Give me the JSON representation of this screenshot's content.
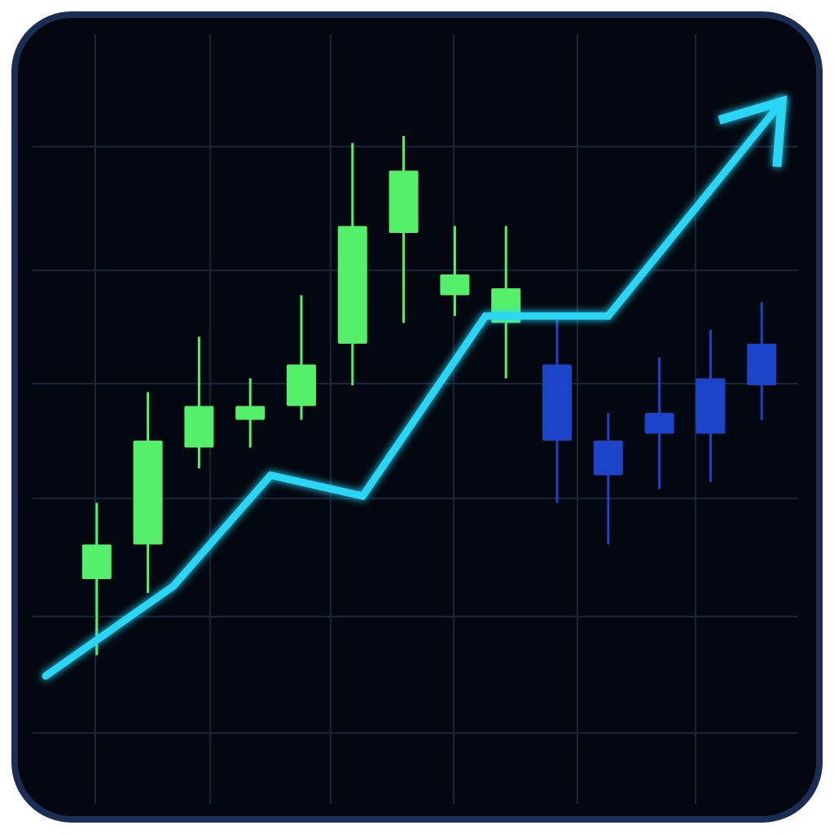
{
  "chart_data": {
    "type": "candlestick",
    "title": "",
    "xlabel": "",
    "ylabel": "",
    "ylim": [
      0,
      100
    ],
    "grid": true,
    "legend": "none",
    "x_range": [
      0,
      14
    ],
    "candles": [
      {
        "x": 1,
        "open": 26,
        "close": 31,
        "high": 37,
        "low": 15,
        "direction": "up"
      },
      {
        "x": 2,
        "open": 31,
        "close": 46,
        "high": 53,
        "low": 24,
        "direction": "up"
      },
      {
        "x": 3,
        "open": 45,
        "close": 51,
        "high": 61,
        "low": 42,
        "direction": "up"
      },
      {
        "x": 4,
        "open": 49,
        "close": 51,
        "high": 55,
        "low": 45,
        "direction": "up"
      },
      {
        "x": 5,
        "open": 51,
        "close": 57,
        "high": 67,
        "low": 49,
        "direction": "up"
      },
      {
        "x": 6,
        "open": 60,
        "close": 77,
        "high": 89,
        "low": 54,
        "direction": "up"
      },
      {
        "x": 7,
        "open": 76,
        "close": 85,
        "high": 90,
        "low": 63,
        "direction": "up"
      },
      {
        "x": 8,
        "open": 67,
        "close": 70,
        "high": 77,
        "low": 64,
        "direction": "up"
      },
      {
        "x": 9,
        "open": 63,
        "close": 68,
        "high": 77,
        "low": 55,
        "direction": "up"
      },
      {
        "x": 10,
        "open": 57,
        "close": 46,
        "high": 64,
        "low": 37,
        "direction": "down"
      },
      {
        "x": 11,
        "open": 46,
        "close": 41,
        "high": 50,
        "low": 31,
        "direction": "down"
      },
      {
        "x": 12,
        "open": 50,
        "close": 47,
        "high": 58,
        "low": 39,
        "direction": "down"
      },
      {
        "x": 13,
        "open": 55,
        "close": 47,
        "high": 62,
        "low": 40,
        "direction": "down"
      },
      {
        "x": 14,
        "open": 60,
        "close": 54,
        "high": 66,
        "low": 49,
        "direction": "down"
      }
    ],
    "series": [
      {
        "name": "trend",
        "x": [
          0,
          2.5,
          4.4,
          6.2,
          8.6,
          11,
          14.4
        ],
        "y": [
          12,
          25,
          41,
          38,
          64,
          64,
          95
        ]
      }
    ],
    "colors": {
      "background": "#03070f",
      "frame": "#1a2d55",
      "grid": "#17253d",
      "up": "#55f06a",
      "down": "#1b44c8",
      "trend": "#2bd6f6"
    },
    "icons": {
      "trend_arrow": "arrow-up-right-icon"
    }
  }
}
